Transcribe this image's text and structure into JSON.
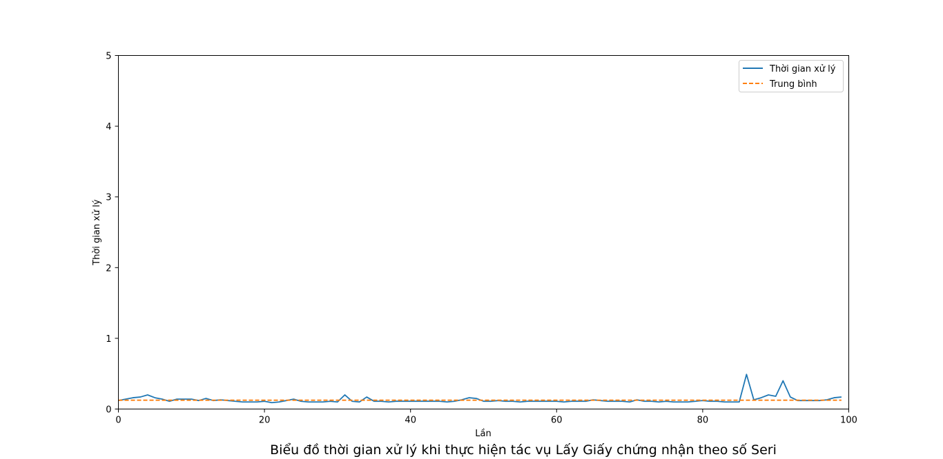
{
  "chart_data": {
    "type": "line",
    "title": "Biểu đồ thời gian xử lý khi thực hiện tác vụ Lấy Giấy chứng nhận theo số Seri",
    "xlabel": "Lần",
    "ylabel": "Thời gian xử lý",
    "xlim": [
      0,
      100
    ],
    "ylim": [
      0,
      5
    ],
    "xticks": [
      0,
      20,
      40,
      60,
      80,
      100
    ],
    "yticks": [
      0,
      1,
      2,
      3,
      4,
      5
    ],
    "xtick_labels": [
      "0",
      "20",
      "40",
      "60",
      "80",
      "100"
    ],
    "ytick_labels": [
      "0",
      "1",
      "2",
      "3",
      "4",
      "5"
    ],
    "grid": false,
    "legend_position": "top-right",
    "series": [
      {
        "name": "Thời gian xử lý",
        "color": "#1f77b4",
        "style": "solid",
        "x": [
          0,
          1,
          2,
          3,
          4,
          5,
          6,
          7,
          8,
          9,
          10,
          11,
          12,
          13,
          14,
          15,
          16,
          17,
          18,
          19,
          20,
          21,
          22,
          23,
          24,
          25,
          26,
          27,
          28,
          29,
          30,
          31,
          32,
          33,
          34,
          35,
          36,
          37,
          38,
          39,
          40,
          41,
          42,
          43,
          44,
          45,
          46,
          47,
          48,
          49,
          50,
          51,
          52,
          53,
          54,
          55,
          56,
          57,
          58,
          59,
          60,
          61,
          62,
          63,
          64,
          65,
          66,
          67,
          68,
          69,
          70,
          71,
          72,
          73,
          74,
          75,
          76,
          77,
          78,
          79,
          80,
          81,
          82,
          83,
          84,
          85,
          86,
          87,
          88,
          89,
          90,
          91,
          92,
          93,
          94,
          95,
          96,
          97,
          98,
          99
        ],
        "values": [
          0.12,
          0.14,
          0.16,
          0.17,
          0.2,
          0.16,
          0.14,
          0.11,
          0.14,
          0.14,
          0.14,
          0.12,
          0.15,
          0.12,
          0.13,
          0.12,
          0.11,
          0.1,
          0.1,
          0.1,
          0.11,
          0.09,
          0.1,
          0.12,
          0.14,
          0.11,
          0.1,
          0.1,
          0.1,
          0.11,
          0.1,
          0.2,
          0.11,
          0.1,
          0.17,
          0.11,
          0.11,
          0.1,
          0.11,
          0.11,
          0.11,
          0.11,
          0.11,
          0.11,
          0.11,
          0.1,
          0.11,
          0.13,
          0.16,
          0.15,
          0.11,
          0.11,
          0.12,
          0.11,
          0.11,
          0.1,
          0.11,
          0.11,
          0.11,
          0.11,
          0.11,
          0.1,
          0.11,
          0.11,
          0.11,
          0.13,
          0.12,
          0.11,
          0.11,
          0.11,
          0.1,
          0.13,
          0.11,
          0.11,
          0.1,
          0.11,
          0.1,
          0.1,
          0.1,
          0.11,
          0.12,
          0.11,
          0.11,
          0.1,
          0.1,
          0.1,
          0.49,
          0.13,
          0.16,
          0.2,
          0.18,
          0.4,
          0.17,
          0.12,
          0.12,
          0.12,
          0.12,
          0.13,
          0.16,
          0.17
        ]
      },
      {
        "name": "Trung bình",
        "color": "#ff7f0e",
        "style": "dashed",
        "x": [
          0,
          99
        ],
        "values": [
          0.125,
          0.125
        ]
      }
    ]
  }
}
